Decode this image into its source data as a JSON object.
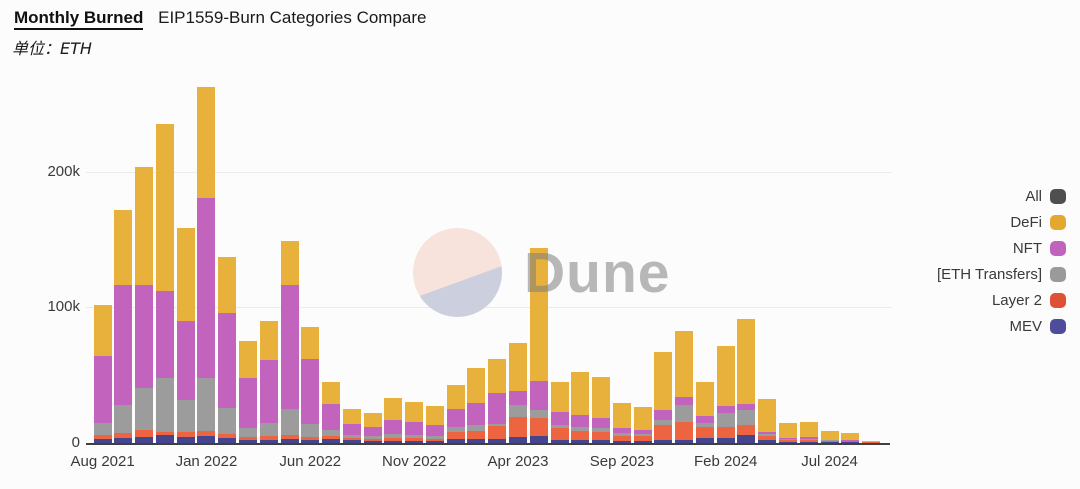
{
  "header": {
    "title_primary": "Monthly Burned",
    "title_secondary": "EIP1559-Burn Categories Compare",
    "subtitle": "单位：ETH"
  },
  "watermark": {
    "text": "Dune"
  },
  "legend": {
    "position": "right",
    "items": [
      {
        "label": "All",
        "color": "#4f4f4f"
      },
      {
        "label": "DeFi",
        "color": "#e3a82f"
      },
      {
        "label": "NFT",
        "color": "#bf63bd"
      },
      {
        "label": "[ETH Transfers]",
        "color": "#9a9a9a"
      },
      {
        "label": "Layer 2",
        "color": "#dd5135"
      },
      {
        "label": "MEV",
        "color": "#4f4c9c"
      }
    ]
  },
  "axes": {
    "y_ticks": [
      {
        "label": "200k",
        "value": 200
      },
      {
        "label": "100k",
        "value": 100
      },
      {
        "label": "0",
        "value": 0
      }
    ],
    "x_ticks": [
      {
        "label": "Aug 2021",
        "month_index": 0
      },
      {
        "label": "Jan 2022",
        "month_index": 5
      },
      {
        "label": "Jun 2022",
        "month_index": 10
      },
      {
        "label": "Nov 2022",
        "month_index": 15
      },
      {
        "label": "Apr 2023",
        "month_index": 20
      },
      {
        "label": "Sep 2023",
        "month_index": 25
      },
      {
        "label": "Feb 2024",
        "month_index": 30
      },
      {
        "label": "Jul 2024",
        "month_index": 35
      }
    ]
  },
  "chart_data": {
    "type": "bar",
    "stacked": true,
    "title": "Monthly Burned EIP1559-Burn Categories Compare",
    "unit": "ETH",
    "value_scale": "thousands of ETH",
    "ylim": [
      0,
      275
    ],
    "grid": "horizontal",
    "legend_position": "right",
    "categories": [
      "Aug 2021",
      "Sep 2021",
      "Oct 2021",
      "Nov 2021",
      "Dec 2021",
      "Jan 2022",
      "Feb 2022",
      "Mar 2022",
      "Apr 2022",
      "May 2022",
      "Jun 2022",
      "Jul 2022",
      "Aug 2022",
      "Sep 2022",
      "Oct 2022",
      "Nov 2022",
      "Dec 2022",
      "Jan 2023",
      "Feb 2023",
      "Mar 2023",
      "Apr 2023",
      "May 2023",
      "Jun 2023",
      "Jul 2023",
      "Aug 2023",
      "Sep 2023",
      "Oct 2023",
      "Nov 2023",
      "Dec 2023",
      "Jan 2024",
      "Feb 2024",
      "Mar 2024",
      "Apr 2024",
      "May 2024",
      "Jun 2024",
      "Jul 2024",
      "Aug 2024",
      "Sep 2024"
    ],
    "series": [
      {
        "name": "MEV",
        "color": "#45458f",
        "values": [
          2.7,
          3.7,
          4.5,
          5.9,
          4.4,
          5.2,
          3.7,
          2.2,
          2.5,
          3.0,
          2.2,
          3.2,
          2.2,
          1.5,
          1.5,
          1.5,
          1.5,
          2.9,
          2.9,
          3.2,
          4.2,
          5.2,
          2.5,
          2.5,
          2.2,
          1.5,
          1.5,
          2.2,
          2.2,
          4.0,
          3.4,
          5.9,
          2.0,
          1.0,
          1.0,
          0.6,
          0.5,
          0.2
        ]
      },
      {
        "name": "Layer 2",
        "color": "#ec6540",
        "values": [
          3.3,
          3.5,
          5.1,
          2.4,
          3.6,
          3.7,
          2.9,
          2.2,
          2.5,
          3.0,
          2.3,
          2.0,
          1.5,
          1.5,
          2.2,
          2.0,
          1.5,
          5.0,
          6.1,
          9.3,
          15.2,
          13.0,
          8.3,
          6.5,
          6.3,
          4.0,
          3.5,
          11.3,
          13.5,
          8.0,
          8.6,
          7.4,
          3.0,
          1.5,
          1.5,
          1.0,
          0.8,
          0.2
        ]
      },
      {
        "name": "[ETH Transfers]",
        "color": "#9c9c9c",
        "values": [
          9.0,
          20.8,
          30.8,
          39.4,
          23.7,
          39.1,
          19.0,
          7.0,
          10.0,
          18.9,
          9.3,
          4.4,
          2.2,
          2.2,
          2.9,
          2.5,
          2.5,
          4.1,
          4.0,
          1.5,
          8.7,
          6.2,
          2.2,
          3.0,
          2.5,
          2.0,
          2.0,
          3.5,
          12.3,
          3.0,
          9.9,
          11.1,
          1.5,
          0.8,
          0.8,
          0.5,
          0.4,
          0.2
        ]
      },
      {
        "name": "NFT",
        "color": "#c263be",
        "values": [
          49.0,
          89.0,
          76.2,
          64.5,
          58.6,
          133.0,
          70.1,
          36.3,
          46.3,
          91.7,
          48.0,
          19.2,
          8.1,
          6.8,
          10.4,
          9.5,
          7.5,
          13.1,
          16.7,
          22.7,
          10.5,
          21.6,
          10.1,
          8.7,
          7.2,
          3.3,
          3.0,
          7.4,
          6.2,
          5.0,
          5.4,
          4.1,
          1.8,
          0.7,
          0.9,
          0.5,
          0.5,
          0.2
        ]
      },
      {
        "name": "DeFi",
        "color": "#e8b13c",
        "values": [
          38.0,
          55.0,
          86.9,
          123.0,
          68.1,
          82.0,
          41.8,
          27.6,
          29.0,
          32.7,
          24.1,
          16.4,
          11.1,
          9.9,
          16.0,
          15.0,
          14.3,
          17.7,
          25.4,
          25.1,
          35.4,
          97.7,
          22.1,
          31.9,
          30.7,
          18.9,
          16.5,
          43.0,
          48.7,
          25.2,
          44.5,
          63.0,
          24.2,
          11.0,
          11.5,
          6.5,
          5.0,
          1.0
        ]
      }
    ]
  },
  "layout_colors": {
    "background": "#fcfcfc",
    "gridline": "#ececec",
    "axis_line": "#3f3f3f",
    "axis_text": "#3a3a3a",
    "watermark_pink": "#f7e2dc",
    "watermark_lavender": "#cccfde"
  }
}
